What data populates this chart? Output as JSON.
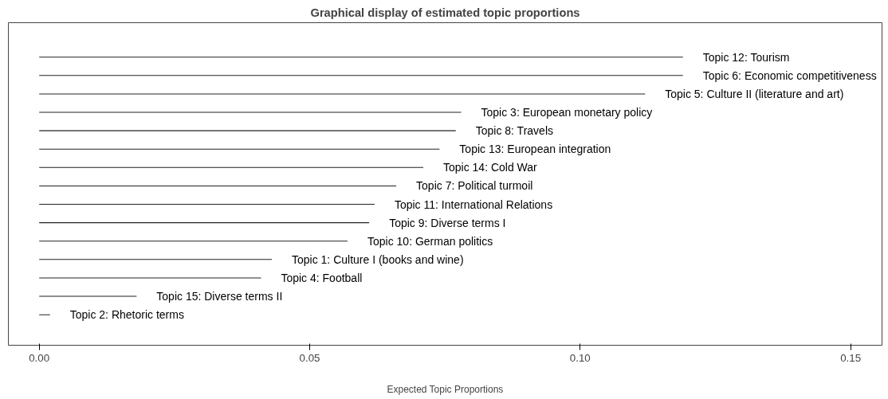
{
  "chart_data": {
    "type": "bar",
    "orientation": "horizontal",
    "title": "Graphical display of estimated topic proportions",
    "xlabel": "Expected Topic Proportions",
    "categories": [
      "Topic 12: Tourism",
      "Topic 6: Economic competitiveness",
      "Topic 5: Culture II (literature and art)",
      "Topic 3: European monetary policy",
      "Topic 8: Travels",
      "Topic 13: European integration",
      "Topic 14: Cold War",
      "Topic 7: Political turmoil",
      "Topic 11: International Relations",
      "Topic 9: Diverse terms I",
      "Topic 10: German politics",
      "Topic 1: Culture I (books and wine)",
      "Topic 4: Football",
      "Topic 15: Diverse terms II",
      "Topic 2: Rhetoric terms"
    ],
    "values": [
      0.119,
      0.119,
      0.112,
      0.078,
      0.077,
      0.074,
      0.071,
      0.066,
      0.062,
      0.061,
      0.057,
      0.043,
      0.041,
      0.018,
      0.002
    ],
    "color": "#222222",
    "xlim": [
      -0.0057,
      0.1558
    ],
    "xticks": [
      {
        "value": 0,
        "label": "0.00"
      },
      0.05,
      {
        "value": 0.1,
        "label": "0.10"
      },
      0.15
    ],
    "tick_labels": "x",
    "grid": false
  }
}
